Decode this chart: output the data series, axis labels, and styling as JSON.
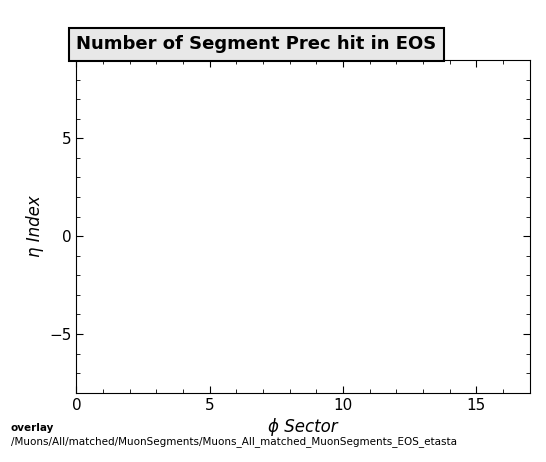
{
  "title": "Number of Segment Prec hit in EOS",
  "xlabel": "ϕ Sector",
  "ylabel": "η Index",
  "xlim": [
    0,
    17
  ],
  "ylim": [
    -8,
    9
  ],
  "xticks": [
    0,
    5,
    10,
    15
  ],
  "yticks": [
    -5,
    0,
    5
  ],
  "background_color": "#ffffff",
  "plot_bg_color": "#ffffff",
  "footer_text1": "overlay",
  "footer_text2": "/Muons/All/matched/MuonSegments/Muons_All_matched_MuonSegments_EOS_etasta",
  "title_fontsize": 13,
  "axis_label_fontsize": 12,
  "tick_fontsize": 11,
  "footer_fontsize": 7.5
}
